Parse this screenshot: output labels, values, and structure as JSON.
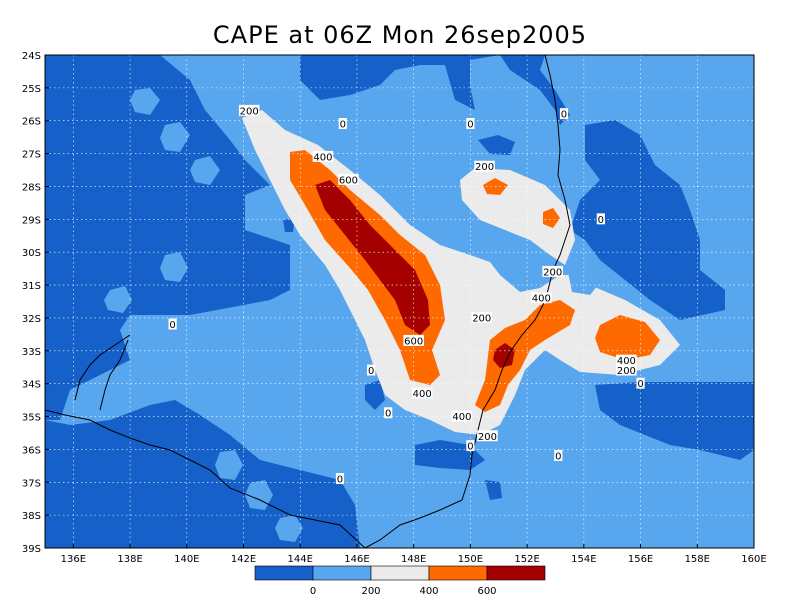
{
  "title": "CAPE at 06Z Mon 26sep2005",
  "colors": {
    "band_0_below": "#1560c9",
    "band_0_200": "#58a6ee",
    "band_200_400": "#ebebeb",
    "band_400_600": "#ff6a00",
    "band_600_plus": "#a40000",
    "coast": "#000000",
    "grid": "#ffffff"
  },
  "axes": {
    "x_ticks": [
      "136E",
      "138E",
      "140E",
      "142E",
      "144E",
      "146E",
      "148E",
      "150E",
      "152E",
      "154E",
      "156E",
      "158E",
      "160E"
    ],
    "y_ticks": [
      "24S",
      "25S",
      "26S",
      "27S",
      "28S",
      "29S",
      "30S",
      "31S",
      "32S",
      "33S",
      "34S",
      "35S",
      "36S",
      "37S",
      "38S",
      "39S"
    ],
    "x_range": [
      135,
      160
    ],
    "y_range": [
      24,
      39
    ]
  },
  "colorbar": {
    "labels": [
      "0",
      "200",
      "400",
      "600"
    ]
  },
  "contour_labels": [
    {
      "text": "200",
      "lon": 142.2,
      "lat": 25.7
    },
    {
      "text": "0",
      "lon": 145.5,
      "lat": 26.1
    },
    {
      "text": "0",
      "lon": 150.0,
      "lat": 26.1
    },
    {
      "text": "0",
      "lon": 153.3,
      "lat": 25.8
    },
    {
      "text": "400",
      "lon": 144.8,
      "lat": 27.1
    },
    {
      "text": "600",
      "lon": 145.7,
      "lat": 27.8
    },
    {
      "text": "200",
      "lon": 150.5,
      "lat": 27.4
    },
    {
      "text": "0",
      "lon": 154.6,
      "lat": 29.0
    },
    {
      "text": "200",
      "lon": 152.9,
      "lat": 30.6
    },
    {
      "text": "400",
      "lon": 152.5,
      "lat": 31.4
    },
    {
      "text": "0",
      "lon": 139.5,
      "lat": 32.2
    },
    {
      "text": "200",
      "lon": 150.4,
      "lat": 32.0
    },
    {
      "text": "600",
      "lon": 148.0,
      "lat": 32.7
    },
    {
      "text": "400",
      "lon": 155.5,
      "lat": 33.3
    },
    {
      "text": "200",
      "lon": 155.5,
      "lat": 33.6
    },
    {
      "text": "0",
      "lon": 146.5,
      "lat": 33.6
    },
    {
      "text": "0",
      "lon": 156.0,
      "lat": 34.0
    },
    {
      "text": "400",
      "lon": 148.3,
      "lat": 34.3
    },
    {
      "text": "0",
      "lon": 147.1,
      "lat": 34.9
    },
    {
      "text": "400",
      "lon": 149.7,
      "lat": 35.0
    },
    {
      "text": "200",
      "lon": 150.6,
      "lat": 35.6
    },
    {
      "text": "0",
      "lon": 150.0,
      "lat": 35.9
    },
    {
      "text": "0",
      "lon": 153.1,
      "lat": 36.2
    },
    {
      "text": "0",
      "lon": 145.4,
      "lat": 36.9
    }
  ]
}
